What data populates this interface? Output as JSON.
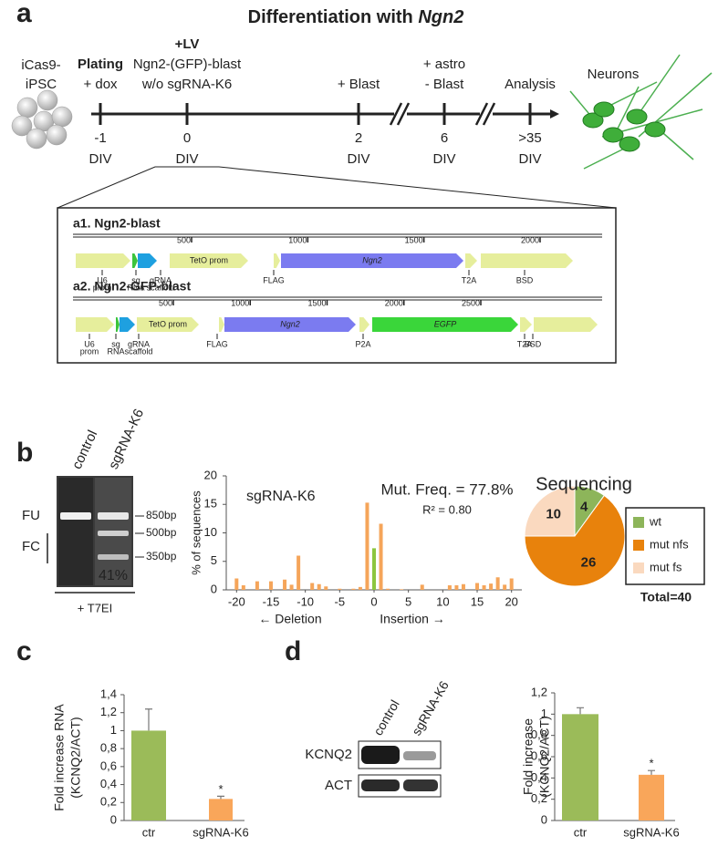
{
  "panel_labels": {
    "a": "a",
    "b": "b",
    "c": "c",
    "d": "d"
  },
  "timeline": {
    "title": "Differentiation with ",
    "title_italic": "Ngn2",
    "start_cells": [
      "iCas9-",
      "iPSC"
    ],
    "steps": [
      {
        "time": "-1",
        "unit": "DIV",
        "lines": [
          {
            "text": "Plating",
            "bold": true
          },
          {
            "text": "+ dox",
            "color": "#3cb44b"
          }
        ]
      },
      {
        "time": "0",
        "unit": "DIV",
        "lines": [
          {
            "text": "+LV",
            "bold": true
          },
          {
            "text": "Ngn2-(GFP)-blast"
          },
          {
            "text": "w/o sgRNA-K6"
          }
        ]
      },
      {
        "time": "2",
        "unit": "DIV",
        "lines": [
          {
            "text": "+ Blast",
            "color": "#3cb44b"
          }
        ]
      },
      {
        "time": "6",
        "unit": "DIV",
        "lines": [
          {
            "text": "+ astro"
          },
          {
            "text": "- Blast",
            "color": "#e8312a"
          }
        ]
      },
      {
        "time": ">35",
        "unit": "DIV",
        "lines": [
          {
            "text": "Analysis"
          }
        ]
      }
    ],
    "end_label": "Neurons"
  },
  "constructs": [
    {
      "title": "a1. Ngn2-blast",
      "ruler": [
        500,
        1000,
        1500,
        2000
      ],
      "features": [
        {
          "label": [
            "U6",
            "prom"
          ]
        },
        {
          "label": [
            "sg",
            "RNA"
          ]
        },
        {
          "label": [
            "gRNA",
            "scaffold"
          ]
        },
        {
          "label": [
            "TetO prom"
          ]
        },
        {
          "label": [
            "FLAG"
          ]
        },
        {
          "label": [
            "Ngn2"
          ],
          "italic": true
        },
        {
          "label": [
            "T2A"
          ]
        },
        {
          "label": [
            "BSD"
          ]
        }
      ]
    },
    {
      "title": "a2. Ngn2-GFP-blast",
      "ruler": [
        500,
        1000,
        1500,
        2000,
        2500
      ],
      "features": [
        {
          "label": [
            "U6",
            "prom"
          ]
        },
        {
          "label": [
            "sg",
            "RNA"
          ]
        },
        {
          "label": [
            "gRNA",
            "scaffold"
          ]
        },
        {
          "label": [
            "TetO prom"
          ]
        },
        {
          "label": [
            "FLAG"
          ]
        },
        {
          "label": [
            "Ngn2"
          ],
          "italic": true
        },
        {
          "label": [
            "P2A"
          ]
        },
        {
          "label": [
            "EGFP"
          ],
          "italic": true
        },
        {
          "label": [
            "T2A"
          ]
        },
        {
          "label": [
            "BSD"
          ]
        }
      ]
    }
  ],
  "gel": {
    "lanes": [
      "control",
      "sgRNA-K6"
    ],
    "rows": [
      "FU",
      "FC"
    ],
    "markers": [
      "850bp",
      "500bp",
      "350bp"
    ],
    "percent": "41%",
    "treatment": "+ T7EI"
  },
  "blot": {
    "lanes": [
      "control",
      "sgRNA-K6"
    ],
    "rows": [
      "KCNQ2",
      "ACT"
    ]
  },
  "chart_data": [
    {
      "type": "bar",
      "title": "sgRNA-K6",
      "annotations": [
        "Mut. Freq. = 77.8%",
        "R² = 0.80"
      ],
      "ylabel": "% of sequences",
      "xlabel_left": "← Deletion",
      "xlabel_right": "Insertion →",
      "xlim": [
        -21.5,
        21.5
      ],
      "xticks": [
        -20,
        -15,
        -10,
        -5,
        0,
        5,
        10,
        15,
        20
      ],
      "ylim": [
        0,
        20
      ],
      "yticks": [
        0,
        5,
        10,
        15,
        20
      ],
      "series": [
        {
          "color": "#f5a55a",
          "x": [
            -20,
            -19,
            -17,
            -15,
            -13,
            -12,
            -11,
            -9,
            -8,
            -7,
            -5,
            -3,
            -2,
            -1,
            1,
            2,
            4,
            7,
            11,
            12,
            13,
            15,
            16,
            17,
            18,
            19,
            20
          ],
          "values": [
            2.0,
            0.8,
            1.5,
            1.5,
            1.8,
            0.9,
            6.0,
            1.2,
            1.0,
            0.6,
            0.2,
            0.2,
            0.5,
            15.3,
            11.6,
            0.2,
            0.1,
            0.9,
            0.8,
            0.8,
            1.0,
            1.2,
            0.8,
            1.1,
            2.2,
            0.9,
            2.0
          ]
        },
        {
          "color": "#8cc63f",
          "x": [
            0
          ],
          "values": [
            7.3
          ]
        }
      ]
    },
    {
      "type": "pie",
      "title": "Sequencing",
      "categories": [
        "wt",
        "mut nfs",
        "mut fs"
      ],
      "values": [
        4,
        26,
        10
      ],
      "colors": [
        "#8db55a",
        "#e8820c",
        "#fad9bf"
      ],
      "total_label": "Total=40"
    },
    {
      "type": "bar",
      "ylabel": [
        "Fold increase RNA",
        "(KCNQ2/ACT)"
      ],
      "categories": [
        "ctr",
        "sgRNA-K6"
      ],
      "values": [
        1.0,
        0.24
      ],
      "errors": [
        0.24,
        0.03
      ],
      "significance": [
        null,
        "*"
      ],
      "colors": [
        "#9bbb59",
        "#f9a65a"
      ],
      "ylim": [
        0,
        1.4
      ],
      "yticks": [
        0,
        {
          "value": 0.2,
          "label": "0,2"
        },
        {
          "value": 0.4,
          "label": "0,4"
        },
        {
          "value": 0.6,
          "label": "0,6"
        },
        {
          "value": 0.8,
          "label": "0,8"
        },
        1,
        {
          "value": 1.2,
          "label": "1,2"
        },
        {
          "value": 1.4,
          "label": "1,4"
        }
      ]
    },
    {
      "type": "bar",
      "ylabel": [
        "Fold increase",
        "(KCNQ2/ACT)"
      ],
      "categories": [
        "ctr",
        "sgRNA-K6"
      ],
      "values": [
        1.0,
        0.43
      ],
      "errors": [
        0.06,
        0.04
      ],
      "significance": [
        null,
        "*"
      ],
      "colors": [
        "#9bbb59",
        "#f9a65a"
      ],
      "ylim": [
        0,
        1.2
      ],
      "yticks": [
        0,
        {
          "value": 0.2,
          "label": "0,2"
        },
        {
          "value": 0.4,
          "label": "0,4"
        },
        {
          "value": 0.6,
          "label": "0,6"
        },
        {
          "value": 0.8,
          "label": "0,8"
        },
        1,
        {
          "value": 1.2,
          "label": "1,2"
        }
      ]
    }
  ]
}
